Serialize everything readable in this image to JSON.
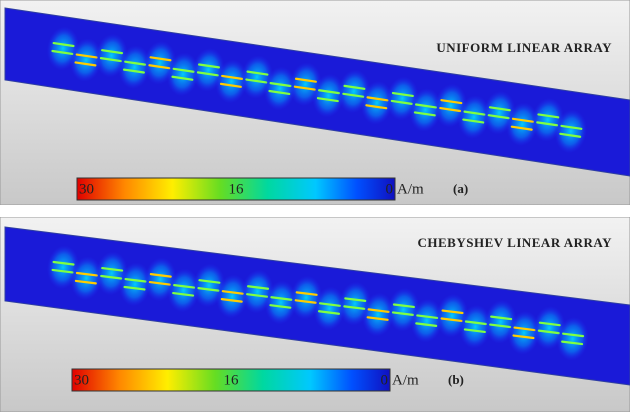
{
  "panels": [
    {
      "title": "UNIFORM LINEAR ARRAY",
      "scale_labels": [
        "30",
        "16",
        "0"
      ],
      "unit": "A/m",
      "caption": "(a)"
    },
    {
      "title": "CHEBYSHEV LINEAR ARRAY",
      "scale_labels": [
        "30",
        "16",
        "0"
      ],
      "unit": "A/m",
      "caption": "(b)"
    }
  ]
}
